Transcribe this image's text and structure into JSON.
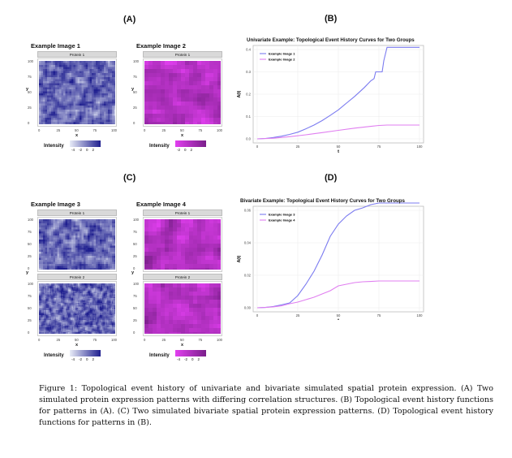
{
  "panels": {
    "A": {
      "letter": "(A)",
      "images": [
        {
          "title": "Example Image 1",
          "strips": [
            "Protein 1"
          ],
          "palette": "blue",
          "legend_title": "Intensity",
          "legend_ticks": [
            "-4",
            "-2",
            "0",
            "2"
          ]
        },
        {
          "title": "Example Image 2",
          "strips": [
            "Protein 1"
          ],
          "palette": "magenta",
          "legend_title": "Intensity",
          "legend_ticks": [
            "-2",
            "0",
            "2"
          ]
        }
      ],
      "axis": {
        "x_label": "x",
        "y_label": "y",
        "ticks": [
          "0",
          "25",
          "50",
          "75",
          "100"
        ]
      }
    },
    "B": {
      "letter": "(B)"
    },
    "C": {
      "letter": "(C)",
      "images": [
        {
          "title": "Example Image 3",
          "strips": [
            "Protein 1",
            "Protein 2"
          ],
          "palette": "blue",
          "legend_title": "Intensity",
          "legend_ticks": [
            "-4",
            "-2",
            "0",
            "2"
          ]
        },
        {
          "title": "Example Image 4",
          "strips": [
            "Protein 1",
            "Protein 2"
          ],
          "palette": "magenta",
          "legend_title": "Intensity",
          "legend_ticks": [
            "-4",
            "-2",
            "0",
            "2"
          ]
        }
      ],
      "axis": {
        "x_label": "x",
        "y_label": "y",
        "ticks": [
          "0",
          "25",
          "50",
          "75",
          "100"
        ]
      }
    },
    "D": {
      "letter": "(D)"
    }
  },
  "colors": {
    "series_blue": "#7b7bf0",
    "series_magenta": "#e07ef0",
    "heat_blue_low": "#e8ecf7",
    "heat_blue_high": "#1f1f8f",
    "heat_mag_low": "#e23ff0",
    "heat_mag_high": "#7a1f8a"
  },
  "chart_data": [
    {
      "type": "line",
      "title": "Univariate Example: Topological Event History Curves for Two Groups",
      "xlabel": "t",
      "ylabel": "A(t)",
      "xlim": [
        0,
        100
      ],
      "ylim": [
        0,
        0.4
      ],
      "xticks": [
        "0",
        "25",
        "50",
        "75",
        "100"
      ],
      "yticks": [
        "0.0",
        "0.1",
        "0.2",
        "0.3",
        "0.4"
      ],
      "legend": "top-left",
      "grid": true,
      "series": [
        {
          "name": "Example Image 1",
          "x": [
            0,
            5,
            10,
            15,
            20,
            25,
            30,
            35,
            40,
            45,
            50,
            55,
            60,
            63,
            66,
            70,
            72,
            73,
            76,
            77,
            78,
            80,
            85,
            90,
            95,
            100
          ],
          "y": [
            0.0,
            0.002,
            0.006,
            0.012,
            0.02,
            0.03,
            0.045,
            0.062,
            0.082,
            0.105,
            0.13,
            0.16,
            0.19,
            0.21,
            0.23,
            0.26,
            0.27,
            0.3,
            0.3,
            0.3,
            0.35,
            0.41,
            0.41,
            0.41,
            0.41,
            0.41
          ]
        },
        {
          "name": "Example Image 2",
          "x": [
            0,
            10,
            20,
            30,
            40,
            50,
            60,
            70,
            75,
            80,
            90,
            100
          ],
          "y": [
            0.0,
            0.003,
            0.01,
            0.018,
            0.028,
            0.038,
            0.048,
            0.056,
            0.06,
            0.062,
            0.062,
            0.062
          ]
        }
      ]
    },
    {
      "type": "line",
      "title": "Bivariate Example: Topological Event History Curves for Two Groups",
      "xlabel": "t",
      "ylabel": "A(t)",
      "xlim": [
        0,
        100
      ],
      "ylim": [
        0,
        0.06
      ],
      "xticks": [
        "0",
        "25",
        "50",
        "75",
        "100"
      ],
      "yticks": [
        "0.00",
        "0.02",
        "0.04",
        "0.06"
      ],
      "legend": "top-left",
      "grid": true,
      "series": [
        {
          "name": "Example Image 3",
          "x": [
            0,
            5,
            10,
            15,
            20,
            25,
            30,
            35,
            40,
            45,
            50,
            55,
            60,
            65,
            70,
            75,
            80,
            90,
            100
          ],
          "y": [
            0.0,
            0.0002,
            0.0008,
            0.0018,
            0.003,
            0.0075,
            0.0145,
            0.0225,
            0.0325,
            0.044,
            0.0515,
            0.0565,
            0.06,
            0.0615,
            0.0635,
            0.0645,
            0.0645,
            0.0645,
            0.0645
          ]
        },
        {
          "name": "Example Image 4",
          "x": [
            0,
            5,
            10,
            15,
            20,
            25,
            30,
            35,
            40,
            45,
            50,
            55,
            60,
            65,
            70,
            75,
            80,
            90,
            100
          ],
          "y": [
            0.0,
            0.0002,
            0.0006,
            0.0012,
            0.0025,
            0.0035,
            0.005,
            0.0065,
            0.0085,
            0.0105,
            0.0135,
            0.0145,
            0.0155,
            0.016,
            0.0162,
            0.0165,
            0.0165,
            0.0165,
            0.0165
          ]
        }
      ]
    }
  ],
  "caption": {
    "label": "Figure 1:",
    "text": "Topological event history of univariate and bivariate simulated spatial protein expression. (A) Two simulated protein expression patterns with differing correlation structures. (B) Topological event history functions for patterns in (A). (C) Two simulated bivariate spatial protein expression patterns. (D) Topological event history functions for patterns in (B)."
  }
}
